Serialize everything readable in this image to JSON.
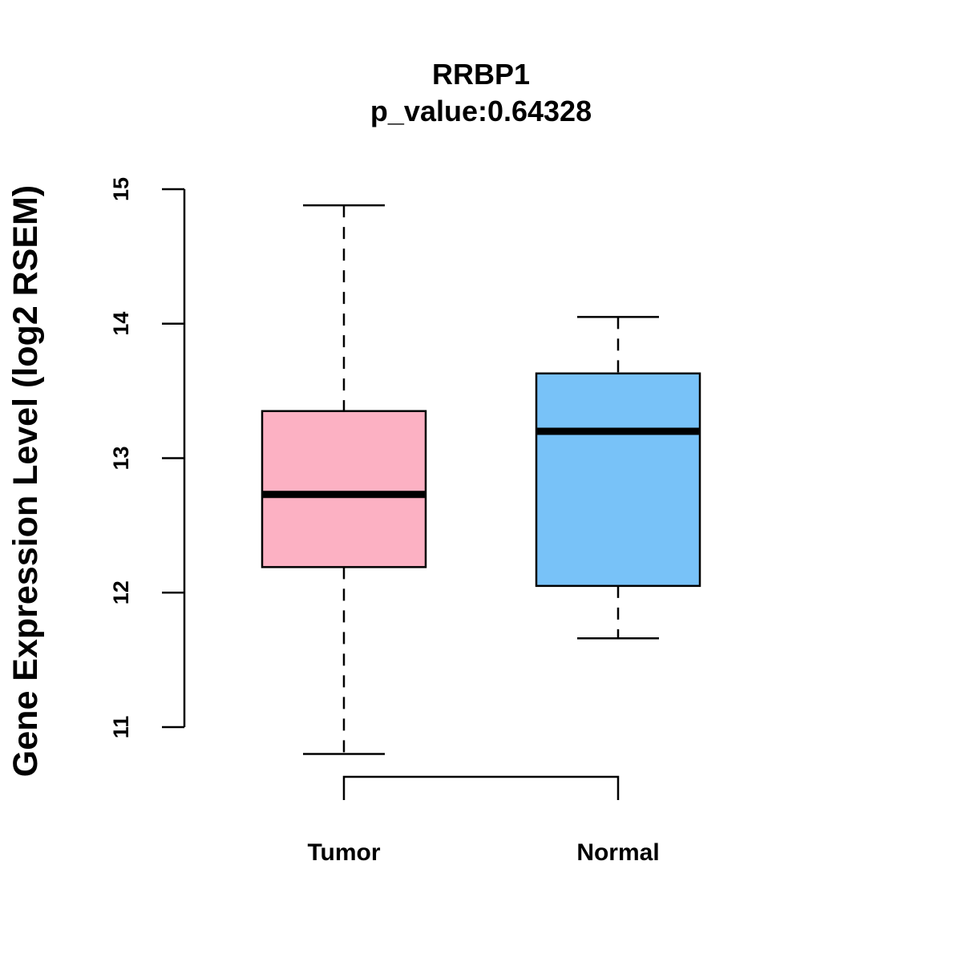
{
  "chart_data": {
    "type": "boxplot",
    "title": "RRBP1",
    "subtitle": "p_value:0.64328",
    "xlabel": "",
    "ylabel": "Gene Expression Level (log2 RSEM)",
    "ylim": [
      11,
      15
    ],
    "yticks": [
      "11",
      "12",
      "13",
      "14",
      "15"
    ],
    "grid": false,
    "categories": [
      "Tumor",
      "Normal"
    ],
    "boxes": [
      {
        "category": "Tumor",
        "min": 10.8,
        "q1": 12.19,
        "median": 12.73,
        "q3": 13.35,
        "max": 14.88,
        "color": "#FCB1C3"
      },
      {
        "category": "Normal",
        "min": 11.66,
        "q1": 12.05,
        "median": 13.2,
        "q3": 13.63,
        "max": 14.05,
        "color": "#78C2F8"
      }
    ],
    "comparison_bracket": {
      "from": "Tumor",
      "to": "Normal"
    }
  }
}
